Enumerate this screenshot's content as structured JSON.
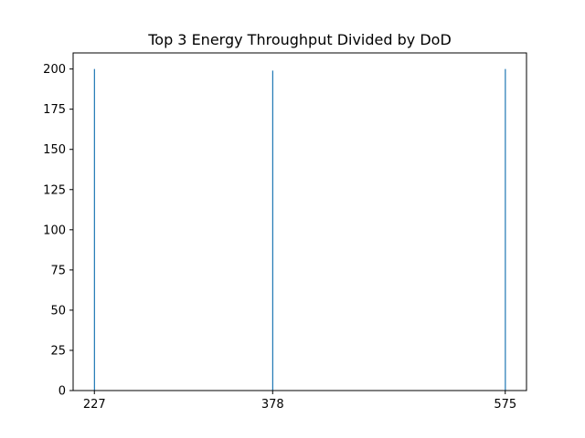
{
  "chart_data": {
    "type": "bar",
    "title": "Top 3 Energy Throughput Divided by DoD",
    "xlabel": "",
    "ylabel": "",
    "x": [
      227,
      378,
      575
    ],
    "values": [
      200,
      199,
      200
    ],
    "xlim": [
      209,
      593
    ],
    "ylim": [
      0,
      210
    ],
    "xticks": [
      "227",
      "378",
      "575"
    ],
    "yticks": [
      "0",
      "25",
      "50",
      "75",
      "100",
      "125",
      "150",
      "175",
      "200"
    ],
    "grid": false,
    "bar_color": "#1f77b4"
  }
}
